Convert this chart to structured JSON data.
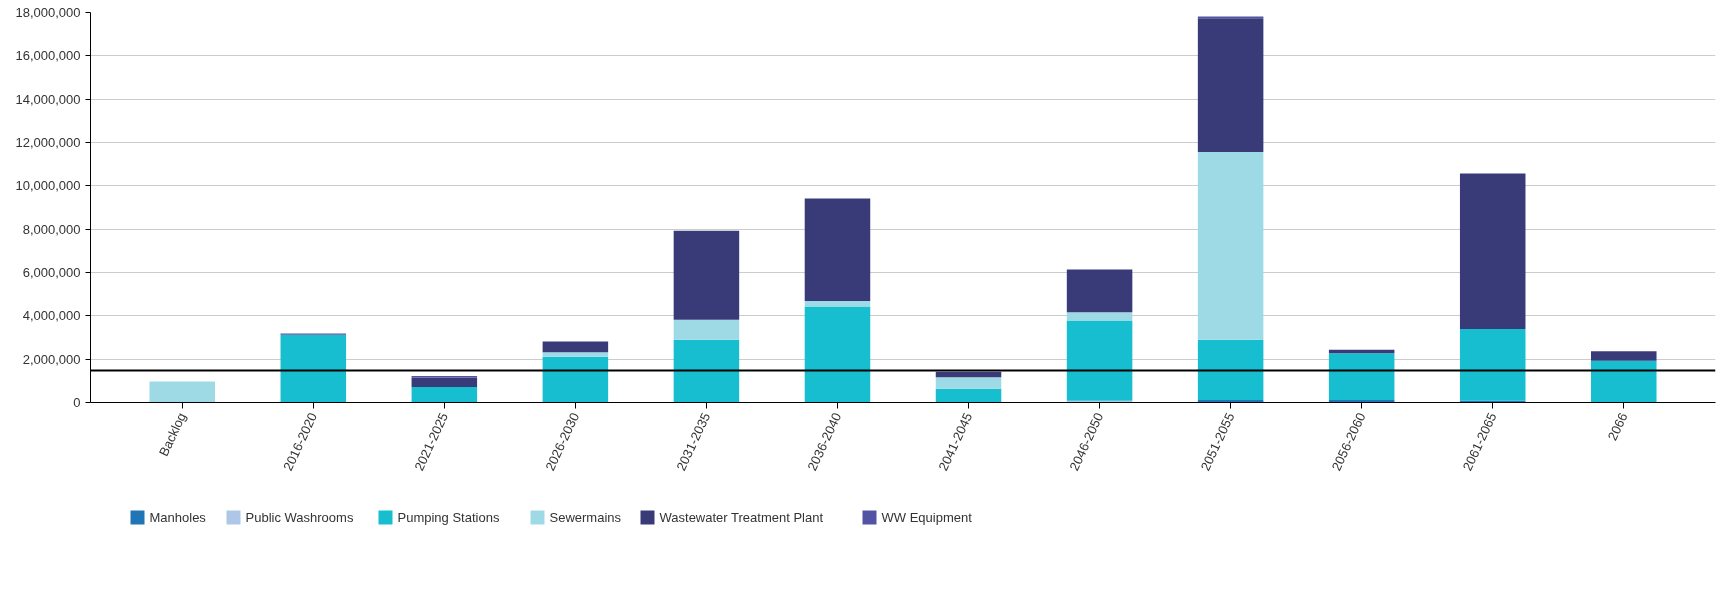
{
  "chart_data": {
    "type": "bar",
    "stacked": true,
    "categories": [
      "Backlog",
      "2016-2020",
      "2021-2025",
      "2026-2030",
      "2031-2035",
      "2036-2040",
      "2041-2045",
      "2046-2050",
      "2051-2055",
      "2056-2060",
      "2061-2065",
      "2066"
    ],
    "series": [
      {
        "name": "Manholes",
        "color": "#2075b6",
        "values": [
          null,
          null,
          null,
          null,
          null,
          null,
          null,
          null,
          110000,
          110000,
          80000,
          null
        ]
      },
      {
        "name": "Public Washrooms",
        "color": "#aec7e8",
        "values": [
          null,
          null,
          null,
          null,
          null,
          null,
          null,
          80000,
          null,
          null,
          null,
          null
        ]
      },
      {
        "name": "Pumping Stations",
        "color": "#17becf",
        "values": [
          null,
          3130000,
          720000,
          2110000,
          2900000,
          4430000,
          640000,
          3710000,
          2790000,
          2160000,
          3310000,
          1930000
        ]
      },
      {
        "name": "Sewermains",
        "color": "#9edae5",
        "values": [
          970000,
          null,
          null,
          210000,
          920000,
          250000,
          520000,
          380000,
          8660000,
          null,
          null,
          null
        ]
      },
      {
        "name": "Wastewater Treatment Plant",
        "color": "#393b79",
        "values": [
          null,
          null,
          430000,
          490000,
          4110000,
          4740000,
          260000,
          1970000,
          6180000,
          160000,
          7180000,
          430000
        ]
      },
      {
        "name": "WW Equipment",
        "color": "#5254a3",
        "values": [
          null,
          50000,
          70000,
          null,
          null,
          null,
          null,
          null,
          70000,
          null,
          null,
          null
        ]
      }
    ],
    "ylim": [
      0,
      18000000
    ],
    "yticks": [
      {
        "value": 0,
        "label": "0"
      },
      {
        "value": 2000000,
        "label": "2,000,000"
      },
      {
        "value": 4000000,
        "label": "4,000,000"
      },
      {
        "value": 6000000,
        "label": "6,000,000"
      },
      {
        "value": 8000000,
        "label": "8,000,000"
      },
      {
        "value": 10000000,
        "label": "10,000,000"
      },
      {
        "value": 12000000,
        "label": "12,000,000"
      },
      {
        "value": 14000000,
        "label": "14,000,000"
      },
      {
        "value": 16000000,
        "label": "16,000,000"
      },
      {
        "value": 18000000,
        "label": "18,000,000"
      }
    ],
    "ref_lines": [
      {
        "axis": "y",
        "value": 1475000,
        "label": null,
        "color": "#000000"
      }
    ],
    "grid": "y",
    "legend": "bottom left"
  }
}
